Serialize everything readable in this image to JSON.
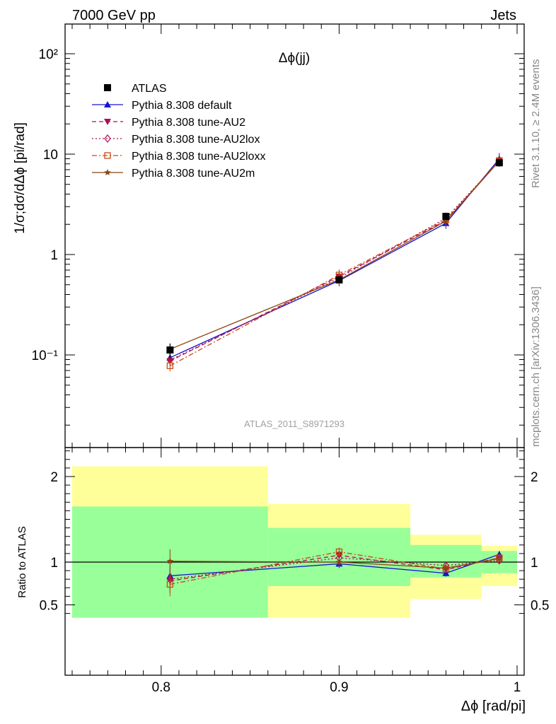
{
  "header": {
    "left": "7000 GeV pp",
    "right": "Jets"
  },
  "side_labels": {
    "rivet": "Rivet 3.1.10, ≥ 2.4M events",
    "mcplots": "mcplots.cern.ch [arXiv:1306.3436]"
  },
  "chart_data": {
    "type": "line",
    "title": "Δϕ(jj)",
    "analysis_label": "ATLAS_2011_S8971293",
    "xlabel": "Δϕ [rad/pi]",
    "ylabel": "1/σ;dσ/dΔϕ [pi/rad]",
    "ratio_ylabel": "Ratio to ATLAS",
    "xlim": [
      0.75,
      1.0
    ],
    "ylim": [
      0.01,
      200
    ],
    "yscale": "log",
    "ratio_ylim": [
      0.4,
      2.3
    ],
    "x_ticks": [
      "0.8",
      "0.9",
      "1"
    ],
    "y_ticks": [
      "10⁻¹",
      "1",
      "10",
      "10²"
    ],
    "ratio_ticks": [
      "0.5",
      "1",
      "2"
    ],
    "legend_position": "top-left",
    "x": [
      0.805,
      0.9,
      0.96,
      0.99
    ],
    "data": {
      "name": "ATLAS",
      "color": "#000000",
      "marker": "filled-square",
      "values": [
        0.112,
        0.56,
        2.4,
        8.2
      ],
      "errors": [
        0.018,
        0.02,
        0.1,
        0.3
      ]
    },
    "series": [
      {
        "name": "Pythia 8.308 default",
        "color": "#1515cc",
        "marker": "filled-triangle-up",
        "dash": "solid",
        "values": [
          0.094,
          0.55,
          2.05,
          9.0
        ],
        "ratio": [
          0.84,
          0.98,
          0.87,
          1.09
        ]
      },
      {
        "name": "Pythia 8.308 tune-AU2",
        "color": "#aa1155",
        "marker": "filled-triangle-down",
        "dash": "dashed",
        "values": [
          0.087,
          0.605,
          2.18,
          8.7
        ],
        "ratio": [
          0.78,
          1.08,
          0.91,
          1.05
        ]
      },
      {
        "name": "Pythia 8.308 tune-AU2lox",
        "color": "#aa1155",
        "marker": "open-diamond",
        "dash": "dotted",
        "values": [
          0.089,
          0.585,
          2.3,
          8.5
        ],
        "ratio": [
          0.8,
          1.05,
          0.96,
          1.02
        ]
      },
      {
        "name": "Pythia 8.308 tune-AU2loxx",
        "color": "#c84a14",
        "marker": "open-square",
        "dash": "dashdot",
        "values": [
          0.078,
          0.625,
          2.22,
          8.6
        ],
        "ratio": [
          0.74,
          1.12,
          0.92,
          1.05
        ]
      },
      {
        "name": "Pythia 8.308 tune-AU2m",
        "color": "#8b4513",
        "marker": "star",
        "dash": "solid",
        "values": [
          0.114,
          0.56,
          2.15,
          8.55
        ],
        "ratio": [
          1.01,
          1.0,
          0.93,
          1.04
        ]
      }
    ],
    "uncertainty_bands": [
      {
        "x_range": [
          0.75,
          0.86
        ],
        "inner": [
          0.35,
          1.65
        ],
        "outer": [
          0.35,
          2.12
        ]
      },
      {
        "x_range": [
          0.86,
          0.94
        ],
        "inner": [
          0.72,
          1.4
        ],
        "outer": [
          0.35,
          1.68
        ]
      },
      {
        "x_range": [
          0.94,
          0.98
        ],
        "inner": [
          0.82,
          1.2
        ],
        "outer": [
          0.57,
          1.32
        ]
      },
      {
        "x_range": [
          0.98,
          1.0
        ],
        "inner": [
          0.87,
          1.13
        ],
        "outer": [
          0.72,
          1.19
        ]
      }
    ],
    "band_colors": {
      "inner": "#99ff99",
      "outer": "#ffff99"
    }
  }
}
